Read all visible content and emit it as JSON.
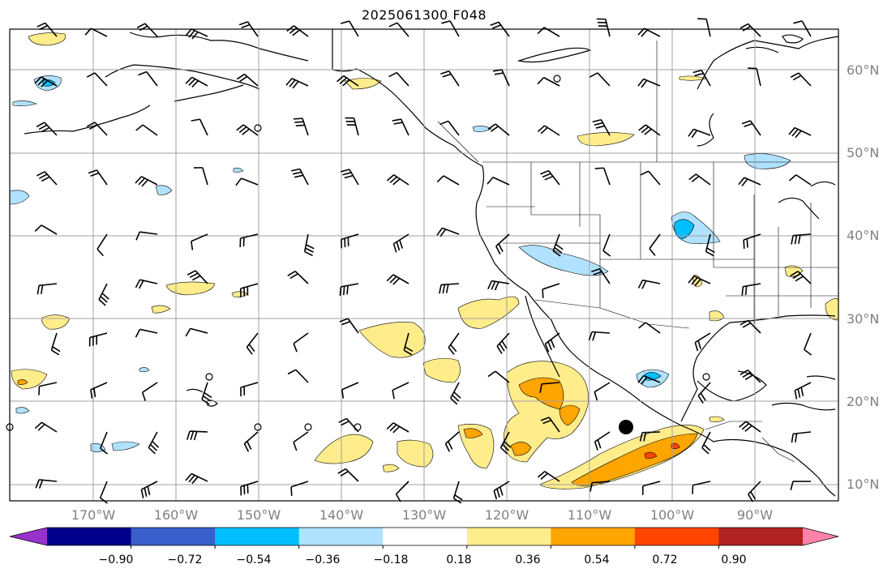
{
  "title": "2025061300 F048",
  "lat_labels": [
    "60°N",
    "50°N",
    "40°N",
    "30°N",
    "20°N",
    "10°N"
  ],
  "lon_labels": [
    "170°W",
    "160°W",
    "150°W",
    "140°W",
    "130°W",
    "120°W",
    "110°W",
    "100°W",
    "90°W"
  ],
  "colorbar": {
    "colors": [
      "#9932cc",
      "#00008b",
      "#3a5fcd",
      "#00bfff",
      "#b0e2ff",
      "#ffffff",
      "#ffec8b",
      "#ffa500",
      "#ff4500",
      "#b22222",
      "#ff82ab"
    ],
    "tick_labels": [
      "−0.90",
      "−0.72",
      "−0.54",
      "−0.36",
      "−0.18",
      "0.18",
      "0.36",
      "0.54",
      "0.72",
      "0.90"
    ]
  },
  "colors": {
    "coast": "#000000",
    "grid": "#a0a0a0",
    "label": "#808080"
  }
}
